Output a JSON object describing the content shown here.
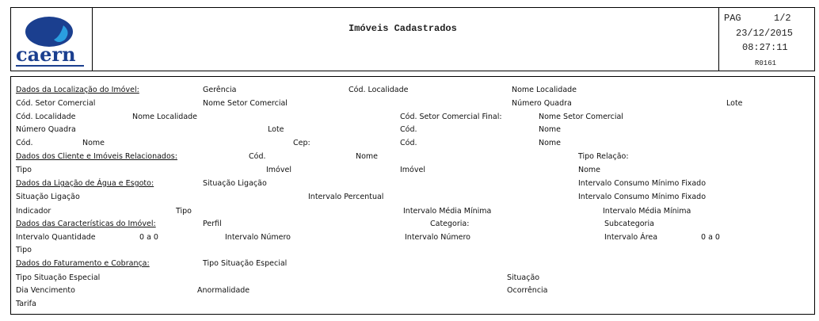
{
  "header": {
    "logo_text": "caern",
    "title": "Imóveis Cadastrados",
    "page_label": "PAG",
    "page_value": "1/2",
    "date": "23/12/2015",
    "time": "08:27:11",
    "report_code": "R0161"
  },
  "brand_colors": {
    "logo_dark": "#1b3f8f",
    "logo_light": "#2a9ee0"
  },
  "fields": [
    "Dados da Localização do Imóvel:",
    "Gerência",
    "Cód. Localidade",
    "Nome Localidade",
    "Cód. Setor Comercial",
    "Nome Setor Comercial",
    "Número Quadra",
    "Lote",
    "Cód. Localidade",
    "Nome Localidade",
    "Cód. Setor Comercial Final:",
    "Nome Setor Comercial",
    "Número Quadra",
    "Lote",
    "Cód.",
    "Nome",
    "Cód.",
    "Nome",
    "Cep:",
    "Cód.",
    "Nome",
    "Dados dos Cliente e Imóveis Relacionados:",
    "Cód.",
    "Nome",
    "Tipo Relação:",
    "Tipo",
    "Imóvel",
    "Imóvel",
    "Nome",
    "Dados da Ligação de Água e Esgoto:",
    "Situação Ligação",
    "Intervalo Consumo Mínimo Fixado",
    "Situação Ligação",
    "Intervalo Percentual",
    "Intervalo Consumo Mínimo Fixado",
    "Indicador",
    "Tipo",
    "Intervalo Média Mínima",
    "Intervalo Média Mínima",
    "Dados das Características do Imóvel:",
    "Perfil",
    "Categoria:",
    "Subcategoria",
    "Intervalo Quantidade",
    "0 a 0",
    "Intervalo Número",
    "Intervalo Número",
    "Intervalo Área",
    "0 a 0",
    "Tipo",
    "Dados do Faturamento e Cobrança:",
    "Tipo Situação Especial",
    "Tipo Situação Especial",
    "Situação",
    "Dia Vencimento",
    "Anormalidade",
    "Ocorrência",
    "Tarifa"
  ]
}
